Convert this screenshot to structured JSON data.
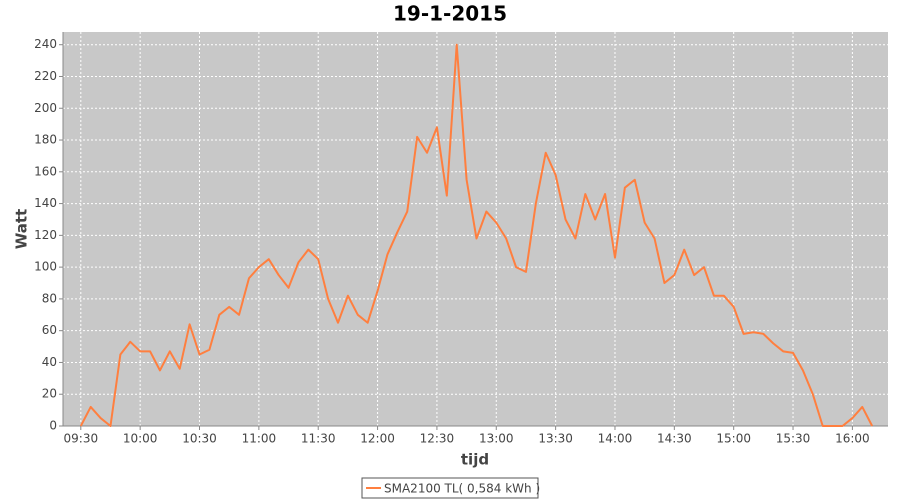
{
  "chart_data": {
    "type": "line",
    "title": "19-1-2015",
    "x_label": "tijd",
    "y_label": "Watt",
    "x": [
      "09:30",
      "09:35",
      "09:40",
      "09:45",
      "09:50",
      "09:55",
      "10:00",
      "10:05",
      "10:10",
      "10:15",
      "10:20",
      "10:25",
      "10:30",
      "10:35",
      "10:40",
      "10:45",
      "10:50",
      "10:55",
      "11:00",
      "11:05",
      "11:10",
      "11:15",
      "11:20",
      "11:25",
      "11:30",
      "11:35",
      "11:40",
      "11:45",
      "11:50",
      "11:55",
      "12:00",
      "12:05",
      "12:10",
      "12:15",
      "12:20",
      "12:25",
      "12:30",
      "12:35",
      "12:40",
      "12:45",
      "12:50",
      "12:55",
      "13:00",
      "13:05",
      "13:10",
      "13:15",
      "13:20",
      "13:25",
      "13:30",
      "13:35",
      "13:40",
      "13:45",
      "13:50",
      "13:55",
      "14:00",
      "14:05",
      "14:10",
      "14:15",
      "14:20",
      "14:25",
      "14:30",
      "14:35",
      "14:40",
      "14:45",
      "14:50",
      "14:55",
      "15:00",
      "15:05",
      "15:10",
      "15:15",
      "15:20",
      "15:25",
      "15:30",
      "15:35",
      "15:40",
      "15:45",
      "15:50",
      "15:55",
      "16:00",
      "16:05",
      "16:10"
    ],
    "series": [
      {
        "name": "SMA2100 TL( 0,584 kWh )",
        "color": "#ff7f3f",
        "values": [
          0,
          12,
          5,
          0,
          45,
          53,
          47,
          47,
          35,
          47,
          36,
          64,
          45,
          48,
          70,
          75,
          70,
          93,
          100,
          105,
          95,
          87,
          103,
          111,
          105,
          80,
          65,
          82,
          70,
          65,
          85,
          108,
          122,
          135,
          182,
          172,
          188,
          145,
          240,
          155,
          118,
          135,
          128,
          118,
          100,
          97,
          140,
          172,
          158,
          130,
          118,
          146,
          130,
          146,
          106,
          150,
          155,
          128,
          118,
          90,
          95,
          111,
          95,
          100,
          82,
          82,
          75,
          58,
          59,
          58,
          52,
          47,
          46,
          35,
          20,
          0,
          0,
          0,
          5,
          12,
          0
        ]
      }
    ],
    "xlim": [
      "09:21",
      "16:18"
    ],
    "xticks": [
      "09:30",
      "10:00",
      "10:30",
      "11:00",
      "11:30",
      "12:00",
      "12:30",
      "13:00",
      "13:30",
      "14:00",
      "14:30",
      "15:00",
      "15:30",
      "16:00"
    ],
    "ylim": [
      0,
      248
    ],
    "yticks": [
      0,
      20,
      40,
      60,
      80,
      100,
      120,
      140,
      160,
      180,
      200,
      220,
      240
    ],
    "grid": true,
    "legend": "bottom"
  }
}
